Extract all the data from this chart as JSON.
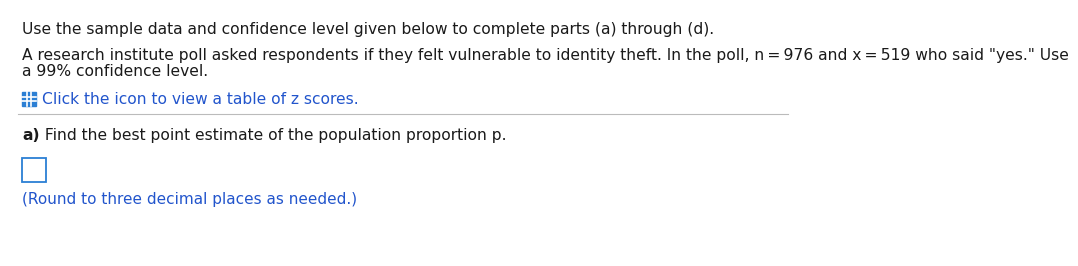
{
  "line1": "Use the sample data and confidence level given below to complete parts (a) through (d).",
  "line2_part1": "A research institute poll asked respondents if they felt vulnerable to identity theft. In the poll, n = 976 and x = 519 who said \"yes.\" Use",
  "line2_part2": "a 99% confidence level.",
  "icon_text": "Click the icon to view a table of z scores.",
  "part_a_bold": "a)",
  "part_a_text": " Find the best point estimate of the population proportion p.",
  "round_note": "(Round to three decimal places as needed.)",
  "bg_color": "#ffffff",
  "text_color": "#1a1a1a",
  "blue_color": "#2255cc",
  "icon_color": "#2b7fd4",
  "separator_color": "#bbbbbb",
  "font_size_main": 11.2,
  "font_size_note": 11.0
}
